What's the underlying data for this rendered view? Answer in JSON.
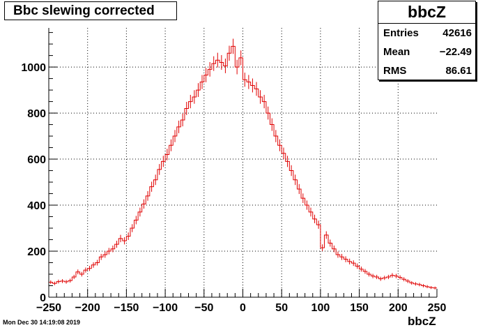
{
  "title": "Bbc slewing corrected",
  "stats": {
    "name": "bbcZ",
    "rows": [
      {
        "label": "Entries",
        "value": "42616"
      },
      {
        "label": "Mean",
        "value": "−22.49"
      },
      {
        "label": "RMS",
        "value": "86.61"
      }
    ]
  },
  "footer_text": "Mon Dec 30 14:19:08 2019",
  "colors": {
    "histogram": "#e00000",
    "axes": "#000000",
    "grid": "#000000"
  },
  "chart_data": {
    "type": "histogram",
    "title": "Bbc slewing corrected",
    "xlabel": "bbcZ",
    "ylabel": "",
    "xlim": [
      -250,
      250
    ],
    "ylim": [
      0,
      1170
    ],
    "grid": true,
    "x_ticks": [
      -250,
      -200,
      -150,
      -100,
      -50,
      0,
      50,
      100,
      150,
      200,
      250
    ],
    "x_tick_labels": [
      "−250",
      "−200",
      "−150",
      "−100",
      "−50",
      "0",
      "50",
      "100",
      "150",
      "200",
      "250"
    ],
    "y_ticks": [
      0,
      200,
      400,
      600,
      800,
      1000
    ],
    "y_tick_labels": [
      "0",
      "200",
      "400",
      "600",
      "800",
      "1000"
    ],
    "bin_width": 5,
    "bin_start": -250,
    "values": [
      65,
      60,
      68,
      70,
      67,
      72,
      88,
      110,
      100,
      118,
      125,
      140,
      150,
      175,
      185,
      200,
      210,
      230,
      255,
      245,
      265,
      300,
      335,
      370,
      405,
      440,
      480,
      510,
      555,
      590,
      620,
      660,
      700,
      740,
      770,
      820,
      850,
      870,
      900,
      935,
      965,
      990,
      1015,
      1030,
      1020,
      1005,
      1060,
      1090,
      1000,
      1040,
      945,
      935,
      920,
      905,
      870,
      850,
      800,
      750,
      700,
      660,
      625,
      590,
      550,
      510,
      470,
      430,
      400,
      370,
      340,
      315,
      215,
      270,
      235,
      210,
      185,
      175,
      165,
      155,
      148,
      135,
      122,
      112,
      100,
      92,
      88,
      80,
      84,
      88,
      95,
      92,
      86,
      78,
      70,
      62,
      58,
      55,
      50,
      46,
      42,
      40
    ]
  }
}
